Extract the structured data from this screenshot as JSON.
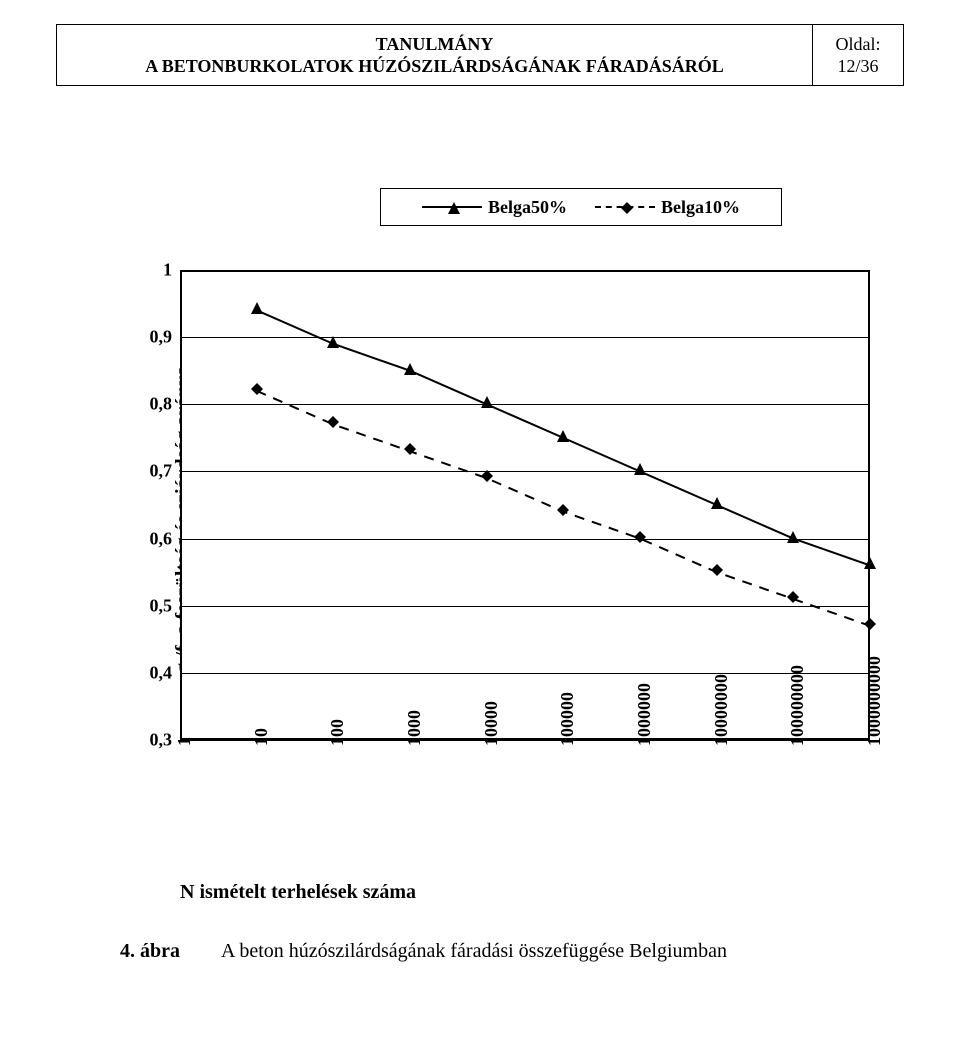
{
  "header": {
    "title_line1": "TANULMÁNY",
    "title_line2": "A BETONBURKOLATOK HÚZÓSZILÁRDSÁGÁNAK FÁRADÁSÁRÓL",
    "page_label": "Oldal:",
    "page_number": "12/36"
  },
  "chart": {
    "type": "line-log-x",
    "legend": {
      "series1": "Belga50%",
      "series2": "Belga10%"
    },
    "ylabel": "σₜ/fₜ a feszültség és sziárdság aránya",
    "xlabel": "N ismételt terhelések száma",
    "ylim": [
      0.3,
      1.0
    ],
    "yticks": [
      "1",
      "0,9",
      "0,8",
      "0,7",
      "0,6",
      "0,5",
      "0,4",
      "0,3"
    ],
    "ytick_values": [
      1,
      0.9,
      0.8,
      0.7,
      0.6,
      0.5,
      0.4,
      0.3
    ],
    "x_log10": [
      0,
      1,
      2,
      3,
      4,
      5,
      6,
      7,
      8,
      9
    ],
    "xticks": [
      "1",
      "10",
      "100",
      "1000",
      "10000",
      "100000",
      "1000000",
      "10000000",
      "100000000",
      "1000000000"
    ],
    "series": {
      "belga50": {
        "color": "#000000",
        "dash": false,
        "marker": "triangle",
        "values": [
          0.94,
          0.89,
          0.85,
          0.8,
          0.75,
          0.7,
          0.65,
          0.6,
          0.56
        ]
      },
      "belga10": {
        "color": "#000000",
        "dash": true,
        "marker": "diamond",
        "values": [
          0.82,
          0.77,
          0.73,
          0.69,
          0.64,
          0.6,
          0.55,
          0.51,
          0.47
        ]
      }
    },
    "colors": {
      "background": "#ffffff",
      "axis": "#000000",
      "grid": "#000000",
      "series": "#000000"
    },
    "font": {
      "family": "Times New Roman",
      "tick_size": 18,
      "label_size": 20,
      "legend_size": 18,
      "weight": "bold"
    },
    "marker_size": 12
  },
  "caption": {
    "prefix": "4. ábra",
    "text": "A beton húzószilárdságának fáradási összefüggése Belgiumban"
  }
}
